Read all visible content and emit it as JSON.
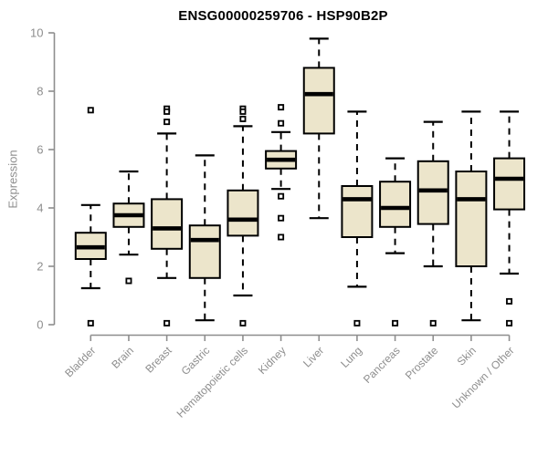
{
  "chart_data": {
    "type": "boxplot",
    "title": "ENSG00000259706 - HSP90B2P",
    "ylabel": "Expression",
    "xlabel": "",
    "ylim": [
      0,
      10
    ],
    "yticks": [
      0,
      2,
      4,
      6,
      8,
      10
    ],
    "grid": false,
    "legend": false,
    "categories": [
      "Bladder",
      "Brain",
      "Breast",
      "Gastric",
      "Hematopoietic cells",
      "Kidney",
      "Liver",
      "Lung",
      "Pancreas",
      "Prostate",
      "Skin",
      "Unknown / Other"
    ],
    "series": [
      {
        "category": "Bladder",
        "whisker_low": 1.25,
        "q1": 2.25,
        "median": 2.65,
        "q3": 3.15,
        "whisker_high": 4.1,
        "outliers": [
          7.35,
          0.05
        ]
      },
      {
        "category": "Brain",
        "whisker_low": 2.4,
        "q1": 3.35,
        "median": 3.75,
        "q3": 4.15,
        "whisker_high": 5.25,
        "outliers": [
          1.5
        ]
      },
      {
        "category": "Breast",
        "whisker_low": 1.6,
        "q1": 2.6,
        "median": 3.3,
        "q3": 4.3,
        "whisker_high": 6.55,
        "outliers": [
          7.4,
          7.3,
          6.95,
          0.05
        ]
      },
      {
        "category": "Gastric",
        "whisker_low": 0.15,
        "q1": 1.6,
        "median": 2.9,
        "q3": 3.4,
        "whisker_high": 5.8,
        "outliers": []
      },
      {
        "category": "Hematopoietic cells",
        "whisker_low": 1.0,
        "q1": 3.05,
        "median": 3.6,
        "q3": 4.6,
        "whisker_high": 6.8,
        "outliers": [
          7.4,
          7.3,
          7.05,
          0.05
        ]
      },
      {
        "category": "Kidney",
        "whisker_low": 4.65,
        "q1": 5.35,
        "median": 5.65,
        "q3": 5.95,
        "whisker_high": 6.6,
        "outliers": [
          7.45,
          6.9,
          4.4,
          3.65,
          3.0
        ]
      },
      {
        "category": "Liver",
        "whisker_low": 3.65,
        "q1": 6.55,
        "median": 7.9,
        "q3": 8.8,
        "whisker_high": 9.8,
        "outliers": []
      },
      {
        "category": "Lung",
        "whisker_low": 1.3,
        "q1": 3.0,
        "median": 4.3,
        "q3": 4.75,
        "whisker_high": 7.3,
        "outliers": [
          0.05
        ]
      },
      {
        "category": "Pancreas",
        "whisker_low": 2.45,
        "q1": 3.35,
        "median": 4.0,
        "q3": 4.9,
        "whisker_high": 5.7,
        "outliers": [
          0.05
        ]
      },
      {
        "category": "Prostate",
        "whisker_low": 2.0,
        "q1": 3.45,
        "median": 4.6,
        "q3": 5.6,
        "whisker_high": 6.95,
        "outliers": [
          0.05
        ]
      },
      {
        "category": "Skin",
        "whisker_low": 0.15,
        "q1": 2.0,
        "median": 4.3,
        "q3": 5.25,
        "whisker_high": 7.3,
        "outliers": []
      },
      {
        "category": "Unknown / Other",
        "whisker_low": 1.75,
        "q1": 3.95,
        "median": 5.0,
        "q3": 5.7,
        "whisker_high": 7.3,
        "outliers": [
          0.8,
          0.05
        ]
      }
    ],
    "colors": {
      "box_fill": "#ECE5CB",
      "box_border": "#000000",
      "median": "#000000",
      "whisker": "#000000",
      "outlier_stroke": "#000000",
      "outlier_fill": "#FFFFFF",
      "axis": "#8E8E8E",
      "tick_label": "#8E8E8E",
      "title_color": "#000000",
      "background": "#FFFFFF"
    }
  }
}
